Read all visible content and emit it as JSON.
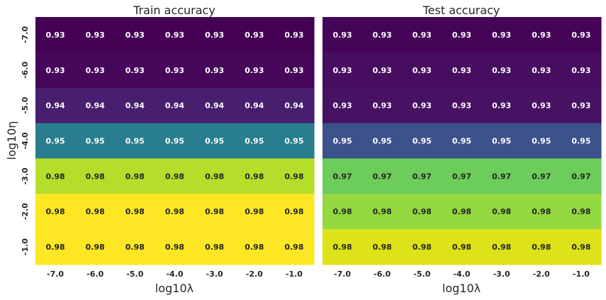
{
  "chart_data": [
    {
      "type": "heatmap",
      "title": "Train accuracy",
      "xlabel": "log10λ",
      "ylabel": "log10η",
      "x_categories": [
        "-7.0",
        "-6.0",
        "-5.0",
        "-4.0",
        "-3.0",
        "-2.0",
        "-1.0"
      ],
      "y_categories": [
        "-7.0",
        "-6.0",
        "-5.0",
        "-4.0",
        "-3.0",
        "-2.0",
        "-1.0"
      ],
      "values": [
        [
          0.93,
          0.93,
          0.93,
          0.93,
          0.93,
          0.93,
          0.93
        ],
        [
          0.93,
          0.93,
          0.93,
          0.93,
          0.93,
          0.93,
          0.93
        ],
        [
          0.94,
          0.94,
          0.94,
          0.94,
          0.94,
          0.94,
          0.94
        ],
        [
          0.95,
          0.95,
          0.95,
          0.95,
          0.95,
          0.95,
          0.95
        ],
        [
          0.98,
          0.98,
          0.98,
          0.98,
          0.98,
          0.98,
          0.98
        ],
        [
          0.98,
          0.98,
          0.98,
          0.98,
          0.98,
          0.98,
          0.98
        ],
        [
          0.98,
          0.98,
          0.98,
          0.98,
          0.98,
          0.98,
          0.98
        ]
      ],
      "row_colors": [
        "#440154",
        "#46065a",
        "#481e6f",
        "#287d8e",
        "#b5de2b",
        "#fde725",
        "#fde725"
      ],
      "label_colors": [
        "#ffffff",
        "#ffffff",
        "#ffffff",
        "#ffffff",
        "#262626",
        "#262626",
        "#262626"
      ],
      "colormap": "viridis",
      "colorbar": false
    },
    {
      "type": "heatmap",
      "title": "Test accuracy",
      "xlabel": "log10λ",
      "ylabel": "",
      "x_categories": [
        "-7.0",
        "-6.0",
        "-5.0",
        "-4.0",
        "-3.0",
        "-2.0",
        "-1.0"
      ],
      "y_categories": [
        "-7.0",
        "-6.0",
        "-5.0",
        "-4.0",
        "-3.0",
        "-2.0",
        "-1.0"
      ],
      "values": [
        [
          0.93,
          0.93,
          0.93,
          0.93,
          0.93,
          0.93,
          0.93
        ],
        [
          0.93,
          0.93,
          0.93,
          0.93,
          0.93,
          0.93,
          0.93
        ],
        [
          0.93,
          0.93,
          0.93,
          0.93,
          0.93,
          0.93,
          0.93
        ],
        [
          0.95,
          0.95,
          0.95,
          0.95,
          0.95,
          0.95,
          0.95
        ],
        [
          0.97,
          0.97,
          0.97,
          0.97,
          0.97,
          0.97,
          0.97
        ],
        [
          0.98,
          0.98,
          0.98,
          0.98,
          0.98,
          0.98,
          0.98
        ],
        [
          0.98,
          0.98,
          0.98,
          0.98,
          0.98,
          0.98,
          0.98
        ]
      ],
      "row_colors": [
        "#450457",
        "#470d60",
        "#471164",
        "#3b528b",
        "#6ccd5a",
        "#94d840",
        "#dde318"
      ],
      "label_colors": [
        "#ffffff",
        "#ffffff",
        "#ffffff",
        "#ffffff",
        "#262626",
        "#262626",
        "#262626"
      ],
      "colormap": "viridis",
      "colorbar": false
    }
  ]
}
